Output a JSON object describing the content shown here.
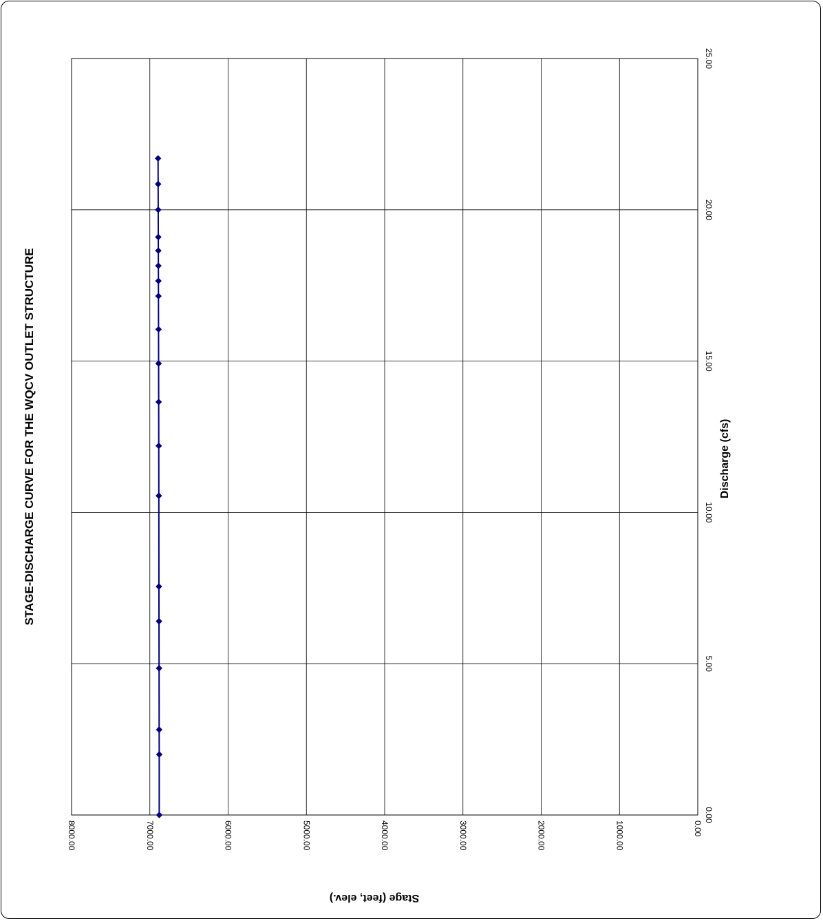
{
  "chart_data": {
    "type": "line",
    "title": "STAGE-DISCHARGE CURVE FOR THE WQCV OUTLET STRUCTURE",
    "xlabel": "Discharge (cfs)",
    "ylabel": "Stage (feet, elev.)",
    "xlim": [
      0,
      25
    ],
    "ylim": [
      0,
      8000
    ],
    "x_ticks": [
      "0.00",
      "5.00",
      "10.00",
      "15.00",
      "20.00",
      "25.00"
    ],
    "y_ticks": [
      "0.00",
      "1000.00",
      "2000.00",
      "3000.00",
      "4000.00",
      "5000.00",
      "6000.00",
      "7000.00",
      "8000.00"
    ],
    "grid": true,
    "orientation": "rotated 90° clockwise (discharge runs vertically, stage horizontally)",
    "series": [
      {
        "color": "#000080",
        "marker": "diamond",
        "x": [
          0.0,
          2.0,
          2.82,
          4.85,
          6.4,
          7.55,
          10.55,
          12.2,
          13.65,
          14.92,
          16.05,
          17.15,
          17.65,
          18.15,
          18.65,
          19.1,
          20.0,
          20.85,
          21.7
        ],
        "y": [
          6880,
          6880,
          6881,
          6882,
          6883,
          6884,
          6885,
          6886,
          6887,
          6888,
          6889,
          6890,
          6890.5,
          6891,
          6891.5,
          6892,
          6893,
          6894,
          6895
        ]
      }
    ]
  }
}
